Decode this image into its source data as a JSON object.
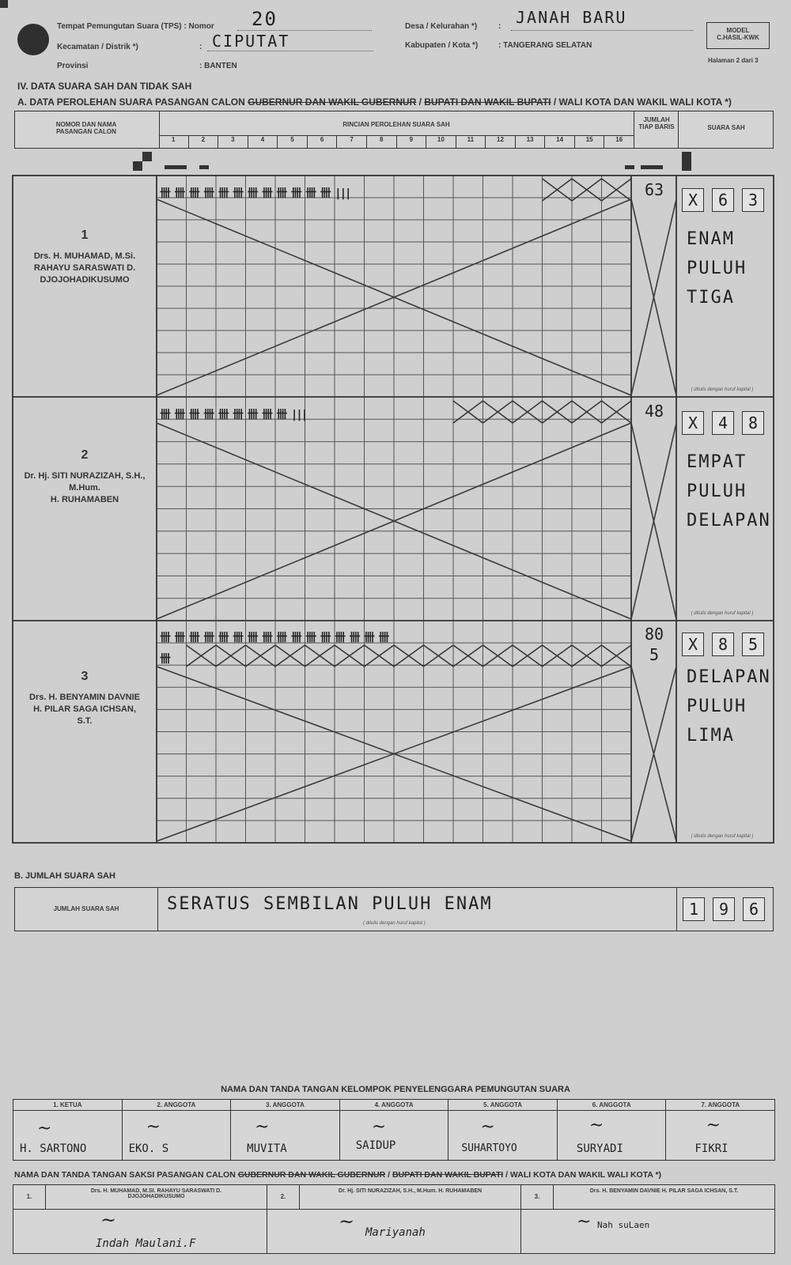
{
  "header": {
    "tps_label": "Tempat Pemungutan Suara (TPS) : Nomor",
    "tps_value": "20",
    "kecamatan_label": "Kecamatan / Distrik *)",
    "kecamatan_value": "CIPUTAT",
    "provinsi_label": "Provinsi",
    "provinsi_value": ": BANTEN",
    "desa_label": "Desa / Kelurahan *)",
    "desa_value": "JANAH BARU",
    "kabupaten_label": "Kabupaten / Kota *)",
    "kabupaten_value": ": TANGERANG SELATAN",
    "model_line1": "MODEL",
    "model_line2": "C.HASIL-KWK",
    "halaman": "Halaman 2 dari 3"
  },
  "section_iv": "IV.   DATA SUARA SAH DAN TIDAK SAH",
  "section_a": {
    "prefix": "A. DATA PEROLEHAN SUARA PASANGAN CALON ",
    "strike1": "GUBERNUR DAN WAKIL GUBERNUR",
    "mid": " / ",
    "strike2": "BUPATI DAN WAKIL BUPATI",
    "suffix": " / WALI KOTA DAN WAKIL WALI KOTA *)"
  },
  "table_head": {
    "col1": "NOMOR DAN NAMA PASANGAN CALON",
    "col2": "RINCIAN PEROLEHAN SUARA SAH",
    "col3": "JUMLAH TIAP BARIS",
    "col4": "SUARA SAH",
    "columns": [
      "1",
      "2",
      "3",
      "4",
      "5",
      "6",
      "7",
      "8",
      "9",
      "10",
      "11",
      "12",
      "13",
      "14",
      "15",
      "16"
    ]
  },
  "candidates": [
    {
      "number": "1",
      "name1": "Drs. H. MUHAMAD, M.Si.",
      "name2": "RAHAYU SARASWATI D. DJOJOHADIKUSUMO",
      "tally": "卌 卌 卌 卌 卌 卌 卌 卌 卌 卌 卌 卌 |||",
      "row_total": "63",
      "digits": [
        "X",
        "6",
        "3"
      ],
      "words": [
        "ENAM",
        "PULUH",
        "TIGA"
      ],
      "note": "( ditulis dengan huruf kapital )"
    },
    {
      "number": "2",
      "name1": "Dr. Hj. SITI NURAZIZAH, S.H., M.Hum.",
      "name2": "H. RUHAMABEN",
      "tally": "卌 卌 卌 卌 卌 卌 卌 卌 卌 |||",
      "row_total": "48",
      "digits": [
        "X",
        "4",
        "8"
      ],
      "words": [
        "EMPAT",
        "PULUH",
        "DELAPAN"
      ],
      "note": "( ditulis dengan huruf kapital )"
    },
    {
      "number": "3",
      "name1": "Drs. H. BENYAMIN DAVNIE",
      "name2": "H. PILAR SAGA ICHSAN, S.T.",
      "tally": "卌 卌 卌 卌 卌 卌 卌 卌 卌 卌 卌 卌 卌 卌 卌 卌",
      "tally2": "卌",
      "row_total": "80",
      "row_total2": "5",
      "digits": [
        "X",
        "8",
        "5"
      ],
      "words": [
        "DELAPAN",
        "PULUH",
        "LIMA"
      ],
      "note": "( ditulis dengan huruf kapital )"
    }
  ],
  "section_b": {
    "title": "B. JUMLAH SUARA SAH",
    "label": "JUMLAH SUARA SAH",
    "words": "SERATUS SEMBILAN PULUH ENAM",
    "note": "( ditulis dengan huruf kapital )",
    "digits": [
      "1",
      "9",
      "6"
    ]
  },
  "kpps": {
    "title": "NAMA DAN TANDA TANGAN KELOMPOK PENYELENGGARA PEMUNGUTAN SUARA",
    "members": [
      {
        "role": "1. KETUA",
        "name": "H. SARTONO"
      },
      {
        "role": "2. ANGGOTA",
        "name": "EKO. S"
      },
      {
        "role": "3. ANGGOTA",
        "name": "MUVITA"
      },
      {
        "role": "4. ANGGOTA",
        "name": "SAIDUP"
      },
      {
        "role": "5. ANGGOTA",
        "name": "SUHARTOYO"
      },
      {
        "role": "6. ANGGOTA",
        "name": "SURYADI"
      },
      {
        "role": "7. ANGGOTA",
        "name": "FIKRI"
      }
    ]
  },
  "saksi": {
    "prefix": "NAMA DAN TANDA TANGAN SAKSI PASANGAN CALON ",
    "strike1": "GUBERNUR DAN WAKIL GUBERNUR",
    "mid": " / ",
    "strike2": "BUPATI DAN WAKIL BUPATI",
    "suffix": " / WALI KOTA DAN WAKIL WALI KOTA *)",
    "entries": [
      {
        "no": "1.",
        "pair": "Drs. H. MUHAMAD, M.SI. RAHAYU SARASWATI D. DJOJOHADIKUSUMO",
        "name": "Indah Maulani.F"
      },
      {
        "no": "2.",
        "pair": "Dr. Hj. SITI NURAZIZAH, S.H., M.Hum. H. RUHAMABEN",
        "name": "Mariyanah"
      },
      {
        "no": "3.",
        "pair": "Drs. H. BENYAMIN DAVNIE H. PILAR SAGA ICHSAN, S.T.",
        "name": "Nah suLaen"
      }
    ]
  }
}
